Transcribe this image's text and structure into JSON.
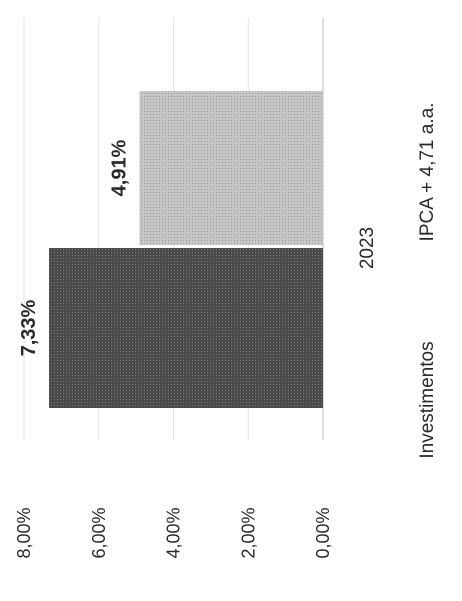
{
  "chart_data": {
    "type": "bar",
    "orientation": "rotated-90",
    "categories": [
      "2023"
    ],
    "series": [
      {
        "name": "Investimentos",
        "values": [
          7.33
        ],
        "label": "7,33%",
        "color": "#4a4a4a"
      },
      {
        "name": "IPCA + 4,71 a.a.",
        "values": [
          4.91
        ],
        "label": "4,91%",
        "color": "#c4c4c4"
      }
    ],
    "ylim": [
      0,
      8
    ],
    "yticks": [
      "0,00%",
      "2,00%",
      "4,00%",
      "6,00%",
      "8,00%"
    ],
    "grid": true,
    "legend_position": "bottom"
  }
}
